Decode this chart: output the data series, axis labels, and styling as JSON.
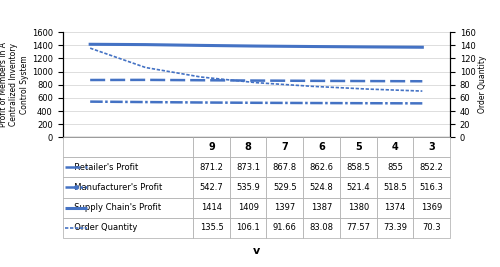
{
  "v_values": [
    9,
    8,
    7,
    6,
    5,
    4,
    3
  ],
  "retailer_profit": [
    871.2,
    873.1,
    867.8,
    862.6,
    858.5,
    855.0,
    852.2
  ],
  "manufacturer_profit": [
    542.7,
    535.9,
    529.5,
    524.8,
    521.4,
    518.5,
    516.3
  ],
  "supply_chain_profit": [
    1414,
    1409,
    1397,
    1387,
    1380,
    1374,
    1369
  ],
  "order_quantity": [
    135.5,
    106.1,
    91.66,
    83.08,
    77.57,
    73.39,
    70.3
  ],
  "left_ylim": [
    0,
    1600
  ],
  "left_yticks": [
    0,
    200,
    400,
    600,
    800,
    1000,
    1200,
    1400,
    1600
  ],
  "right_ylim": [
    0,
    160
  ],
  "right_yticks": [
    0,
    20,
    40,
    60,
    80,
    100,
    120,
    140,
    160
  ],
  "left_ylabel": "Profit of Members In A\nCentralized Inventory\nControl System",
  "right_ylabel": "Order Quantity",
  "xlabel": "v",
  "line_color": "#4472C4",
  "bg_color": "#FFFFFF",
  "legend_labels": [
    "Retailer's Profit",
    "Manufacturer's Profit",
    "Supply Chain's Profit",
    "Order Quantity"
  ],
  "table_data": [
    [
      "871.2",
      "873.1",
      "867.8",
      "862.6",
      "858.5",
      "855",
      "852.2"
    ],
    [
      "542.7",
      "535.9",
      "529.5",
      "524.8",
      "521.4",
      "518.5",
      "516.3"
    ],
    [
      "1414",
      "1409",
      "1397",
      "1387",
      "1380",
      "1374",
      "1369"
    ],
    [
      "135.5",
      "106.1",
      "91.66",
      "83.08",
      "77.57",
      "73.39",
      "70.3"
    ]
  ],
  "col_headers": [
    "9",
    "8",
    "7",
    "6",
    "5",
    "4",
    "3"
  ]
}
